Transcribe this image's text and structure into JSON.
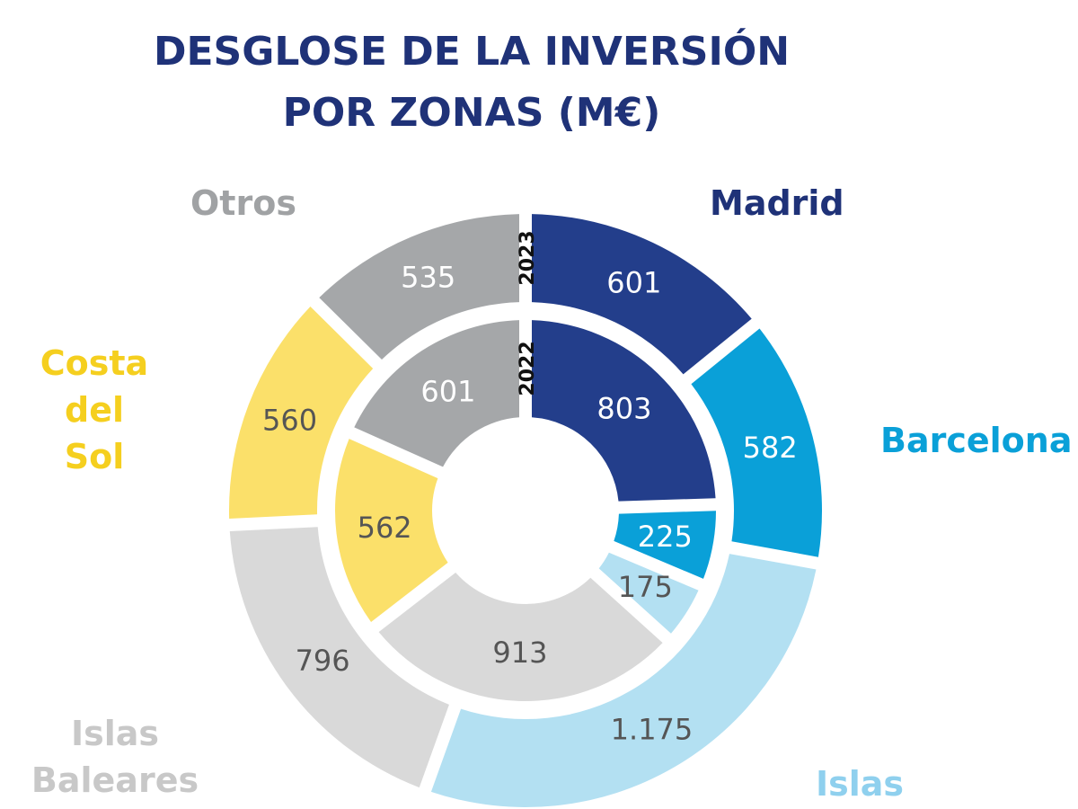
{
  "chart_data": {
    "type": "pie",
    "subtype": "double-donut",
    "title_lines": [
      "DESGLOSE DE LA INVERSIÓN",
      "POR ZONAS (M€)"
    ],
    "categories": [
      "Madrid",
      "Barcelona",
      "Islas",
      "Islas Baleares",
      "Costa del Sol",
      "Otros"
    ],
    "category_label_lines": [
      [
        "Madrid"
      ],
      [
        "Barcelona"
      ],
      [
        "Islas"
      ],
      [
        "Islas",
        "Baleares"
      ],
      [
        "Costa",
        "del Sol"
      ],
      [
        "Otros"
      ]
    ],
    "colors": [
      "#233e8b",
      "#0aa0d8",
      "#b3e0f2",
      "#d9d9d9",
      "#fbe06a",
      "#a5a7a9"
    ],
    "label_colors": [
      "#1f3278",
      "#0aa0d8",
      "#8fd0ee",
      "#c8c8c8",
      "#f5cf1f",
      "#a0a2a4"
    ],
    "value_text_colors": [
      "#ffffff",
      "#ffffff",
      "#555555",
      "#555555",
      "#555555",
      "#ffffff"
    ],
    "series": [
      {
        "name": "2023",
        "ring": "outer",
        "values": [
          601,
          582,
          1175,
          796,
          560,
          535
        ],
        "value_labels": [
          "601",
          "582",
          "1.175",
          "796",
          "560",
          "535"
        ]
      },
      {
        "name": "2022",
        "ring": "inner",
        "values": [
          803,
          225,
          175,
          913,
          562,
          601
        ],
        "value_labels": [
          "803",
          "225",
          "175",
          "913",
          "562",
          "601"
        ]
      }
    ],
    "unit": "M€"
  }
}
